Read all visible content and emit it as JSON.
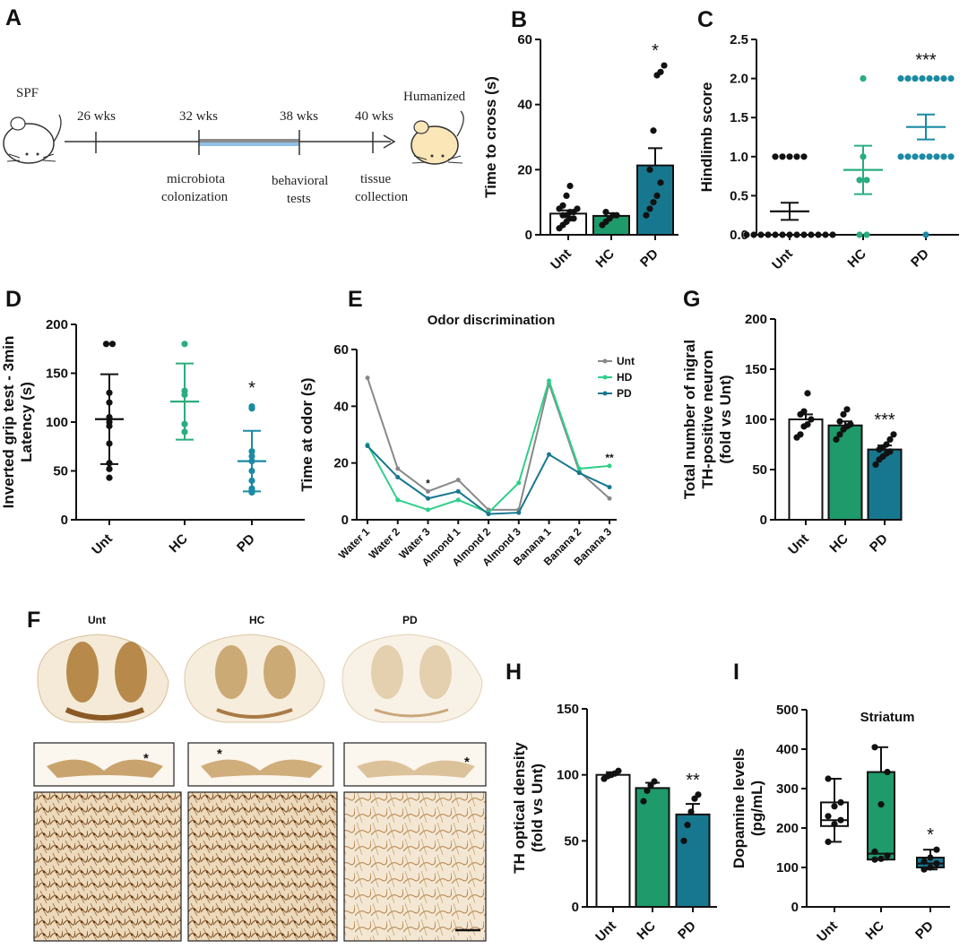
{
  "colors": {
    "unt": "#111111",
    "unt_bar": "#ffffff",
    "hc": "#1e9a6b",
    "hc_dot": "#2aad7e",
    "pd": "#17778f",
    "pd_dot": "#1b8aa3",
    "grey": "#888888",
    "hd_line": "#2fcf8a"
  },
  "panels": {
    "A": "A",
    "B": "B",
    "C": "C",
    "D": "D",
    "E": "E",
    "F": "F",
    "G": "G",
    "H": "H",
    "I": "I"
  },
  "panel_a": {
    "left_label": "SPF",
    "right_label": "Humanized",
    "timepoints": [
      "26 wks",
      "32 wks",
      "38 wks",
      "40 wks"
    ],
    "events": [
      [
        "microbiota",
        "colonization"
      ],
      [
        "behavioral",
        "tests"
      ],
      [
        "tissue",
        "collection"
      ]
    ]
  },
  "panel_f": {
    "columns": [
      "Unt",
      "HC",
      "PD"
    ]
  },
  "chart_data": [
    {
      "id": "B",
      "type": "bar",
      "categories": [
        "Unt",
        "HC",
        "PD"
      ],
      "ylabel": "Time to cross (s)",
      "ylim": [
        0,
        60
      ],
      "yticks": [
        0,
        20,
        40,
        60
      ],
      "means": [
        6.5,
        5.8,
        21.3
      ],
      "sem": [
        1.0,
        0.8,
        5.3
      ],
      "points": [
        [
          2,
          3,
          4,
          5,
          5,
          6,
          6,
          7,
          7,
          8,
          8,
          9,
          12,
          15
        ],
        [
          3,
          4,
          5,
          6,
          6,
          7
        ],
        [
          6,
          8,
          10,
          12,
          16,
          20,
          32,
          49,
          50,
          52
        ]
      ],
      "significance": [
        "",
        "",
        "*"
      ]
    },
    {
      "id": "C",
      "type": "scatter",
      "categories": [
        "Unt",
        "HC",
        "PD"
      ],
      "ylabel": "Hindlimb score",
      "ylim": [
        0,
        2.5
      ],
      "yticks": [
        "0.0",
        "0.5",
        "1.0",
        "1.5",
        "2.0",
        "2.5"
      ],
      "means": [
        0.3,
        0.83,
        1.38
      ],
      "sem": [
        0.11,
        0.31,
        0.16
      ],
      "points": [
        [
          0,
          0,
          0,
          0,
          0,
          0,
          0,
          0,
          0,
          0,
          0,
          0,
          0,
          1,
          1,
          1,
          1,
          1
        ],
        [
          0,
          0,
          0.7,
          0.7,
          1.0,
          2.0
        ],
        [
          0,
          1,
          1,
          1,
          1,
          1,
          1,
          1,
          1,
          2,
          2,
          2,
          2,
          2,
          2,
          2,
          2
        ]
      ],
      "significance": [
        "",
        "",
        "***"
      ]
    },
    {
      "id": "D",
      "type": "scatter",
      "categories": [
        "Unt",
        "HC",
        "PD"
      ],
      "ylabel": [
        "Inverted grip test - 3min",
        "Latency (s)"
      ],
      "ylim": [
        0,
        200
      ],
      "yticks": [
        0,
        50,
        100,
        150,
        200
      ],
      "means": [
        103,
        121,
        60
      ],
      "sd": [
        46,
        39,
        31
      ],
      "points": [
        [
          43,
          52,
          58,
          78,
          96,
          100,
          105,
          120,
          130,
          180,
          180
        ],
        [
          90,
          98,
          128,
          132,
          180
        ],
        [
          28,
          30,
          32,
          40,
          50,
          60,
          65,
          70,
          114,
          116
        ]
      ],
      "significance": [
        "",
        "",
        "*"
      ]
    },
    {
      "id": "E",
      "type": "line",
      "title": "Odor discrimination",
      "ylabel": "Time at odor (s)",
      "ylim": [
        0,
        60
      ],
      "yticks": [
        0,
        20,
        40,
        60
      ],
      "categories": [
        "Water 1",
        "Water 2",
        "Water 3",
        "Almond 1",
        "Almond 2",
        "Almond 3",
        "Banana 1",
        "Banana 2",
        "Banana 3"
      ],
      "series": [
        {
          "name": "Unt",
          "values": [
            50,
            18,
            10,
            14,
            3.5,
            3.5,
            48,
            17,
            7.5
          ]
        },
        {
          "name": "HD",
          "values": [
            26.5,
            7,
            3.5,
            7,
            2.5,
            13,
            49,
            18,
            19
          ]
        },
        {
          "name": "PD",
          "values": [
            26,
            15,
            7.5,
            10,
            2,
            2.5,
            23,
            16.5,
            11.5
          ]
        }
      ],
      "annotations": [
        {
          "category": "Water 3",
          "text": "*"
        },
        {
          "category": "Banana 3",
          "text": "**"
        }
      ]
    },
    {
      "id": "G",
      "type": "bar",
      "categories": [
        "Unt",
        "HC",
        "PD"
      ],
      "ylabel": [
        "Total number of nigral",
        "TH-positive neuron",
        "(fold vs Unt)"
      ],
      "ylim": [
        0,
        200
      ],
      "yticks": [
        0,
        50,
        100,
        150,
        200
      ],
      "means": [
        100,
        94,
        70
      ],
      "sem": [
        5,
        4,
        4
      ],
      "points": [
        [
          82,
          85,
          93,
          95,
          100,
          105,
          108,
          126
        ],
        [
          80,
          85,
          90,
          93,
          95,
          98,
          105,
          110
        ],
        [
          55,
          60,
          63,
          66,
          68,
          70,
          72,
          75,
          80,
          85
        ]
      ],
      "significance": [
        "",
        "",
        "***"
      ]
    },
    {
      "id": "H",
      "type": "bar",
      "categories": [
        "Unt",
        "HC",
        "PD"
      ],
      "ylabel": [
        "TH optical density",
        "(fold vs Unt)"
      ],
      "ylim": [
        0,
        150
      ],
      "yticks": [
        0,
        50,
        100,
        150
      ],
      "means": [
        100,
        90,
        70
      ],
      "sem": [
        2,
        4,
        8
      ],
      "points": [
        [
          97,
          99,
          100,
          101,
          103
        ],
        [
          80,
          88,
          92,
          95
        ],
        [
          50,
          62,
          72,
          82,
          85
        ]
      ],
      "significance": [
        "",
        "",
        "**"
      ]
    },
    {
      "id": "I",
      "type": "box",
      "title": "Striatum",
      "categories": [
        "Unt",
        "HC",
        "PD"
      ],
      "ylabel": [
        "Dopamine levels",
        "(pg/mL)"
      ],
      "ylim": [
        0,
        500
      ],
      "yticks": [
        0,
        100,
        200,
        300,
        400,
        500
      ],
      "boxes": [
        {
          "min": 165,
          "q1": 205,
          "median": 220,
          "q3": 265,
          "max": 325
        },
        {
          "min": 120,
          "q1": 120,
          "median": 135,
          "q3": 342,
          "max": 405
        },
        {
          "min": 95,
          "q1": 100,
          "median": 110,
          "q3": 125,
          "max": 145
        }
      ],
      "points": [
        [
          165,
          210,
          220,
          230,
          255,
          265,
          325
        ],
        [
          120,
          122,
          130,
          140,
          260,
          342,
          405
        ],
        [
          95,
          100,
          110,
          115,
          125,
          145
        ]
      ],
      "significance": [
        "",
        "",
        "*"
      ]
    }
  ]
}
